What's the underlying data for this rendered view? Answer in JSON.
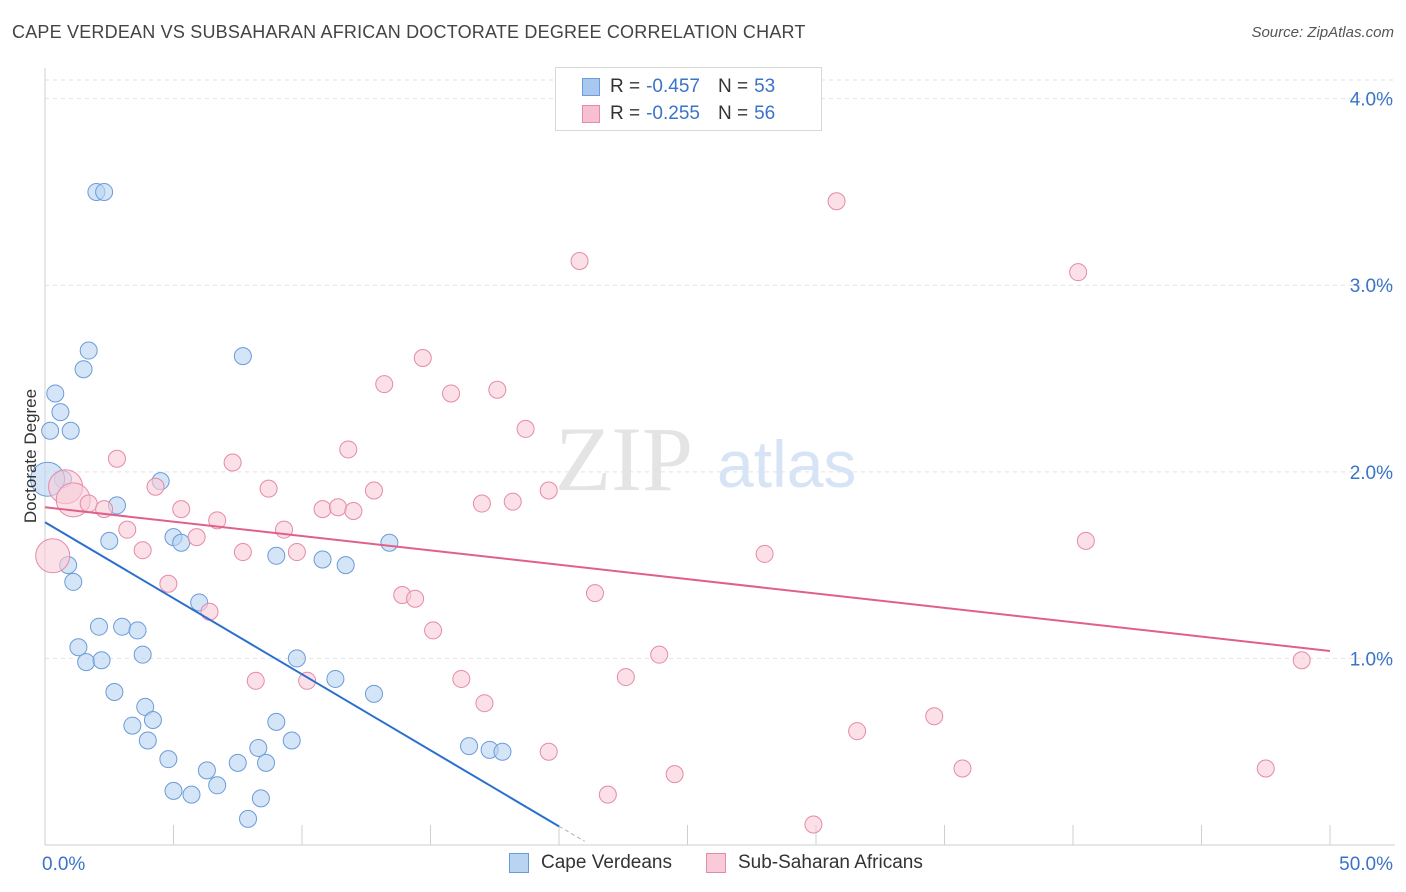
{
  "header": {
    "title": "CAPE VERDEAN VS SUBSAHARAN AFRICAN DOCTORATE DEGREE CORRELATION CHART",
    "source": "Source: ZipAtlas.com"
  },
  "watermark": {
    "zip": "ZIP",
    "atlas": "atlas"
  },
  "legend": {
    "rows": [
      {
        "r_label": "R =",
        "r_value": "-0.457",
        "n_label": "N =",
        "n_value": "53",
        "color": "#a8c8f0",
        "border": "#6b9bd8"
      },
      {
        "r_label": "R =",
        "r_value": "-0.255",
        "n_label": "N =",
        "n_value": "56",
        "color": "#f7c0d0",
        "border": "#e58aa8"
      }
    ]
  },
  "bottom_legend": {
    "items": [
      {
        "label": "Cape Verdeans",
        "color": "#b9d3f3",
        "border": "#6b9bd8"
      },
      {
        "label": "Sub-Saharan Africans",
        "color": "#f9cbd9",
        "border": "#e58aa8"
      }
    ]
  },
  "chart_data": {
    "type": "scatter",
    "title": "CAPE VERDEAN VS SUBSAHARAN AFRICAN DOCTORATE DEGREE CORRELATION CHART",
    "ylabel": "Doctorate Degree",
    "xlabel": "",
    "xlim": [
      0,
      50
    ],
    "ylim": [
      0,
      4.1
    ],
    "x_tick_labels": [
      "0.0%",
      "50.0%"
    ],
    "y_ticks": [
      1.0,
      2.0,
      3.0,
      4.0
    ],
    "y_tick_labels": [
      "1.0%",
      "2.0%",
      "3.0%",
      "4.0%"
    ],
    "grid": true,
    "legend_position": "top-center",
    "series": [
      {
        "name": "Cape Verdeans",
        "color": "#6b9bd8",
        "fill": "#b9d3f3",
        "line_color": "#2b6fce",
        "trend": {
          "x": [
            0,
            20
          ],
          "y": [
            1.73,
            0.1
          ]
        },
        "trend_dashed_ext": {
          "x": [
            20,
            21.0
          ],
          "y": [
            0.1,
            0.02
          ]
        },
        "points": [
          [
            2.0,
            3.5
          ],
          [
            2.3,
            3.5
          ],
          [
            1.7,
            2.65
          ],
          [
            1.5,
            2.55
          ],
          [
            7.7,
            2.62
          ],
          [
            0.4,
            2.42
          ],
          [
            0.6,
            2.32
          ],
          [
            0.2,
            2.22
          ],
          [
            1.0,
            2.22
          ],
          [
            0.7,
            1.96
          ],
          [
            4.5,
            1.95
          ],
          [
            2.8,
            1.82
          ],
          [
            2.5,
            1.63
          ],
          [
            5.0,
            1.65
          ],
          [
            5.3,
            1.62
          ],
          [
            9.0,
            1.55
          ],
          [
            10.8,
            1.53
          ],
          [
            11.7,
            1.5
          ],
          [
            13.4,
            1.62
          ],
          [
            0.9,
            1.5
          ],
          [
            1.1,
            1.41
          ],
          [
            6.0,
            1.3
          ],
          [
            2.1,
            1.17
          ],
          [
            3.0,
            1.17
          ],
          [
            3.6,
            1.15
          ],
          [
            1.3,
            1.06
          ],
          [
            1.6,
            0.98
          ],
          [
            2.2,
            0.99
          ],
          [
            3.8,
            1.02
          ],
          [
            9.8,
            1.0
          ],
          [
            11.3,
            0.89
          ],
          [
            12.8,
            0.81
          ],
          [
            2.7,
            0.82
          ],
          [
            3.9,
            0.74
          ],
          [
            4.2,
            0.67
          ],
          [
            3.4,
            0.64
          ],
          [
            4.0,
            0.56
          ],
          [
            9.0,
            0.66
          ],
          [
            9.6,
            0.56
          ],
          [
            8.3,
            0.52
          ],
          [
            4.8,
            0.46
          ],
          [
            6.3,
            0.4
          ],
          [
            7.5,
            0.44
          ],
          [
            8.6,
            0.44
          ],
          [
            16.5,
            0.53
          ],
          [
            17.3,
            0.51
          ],
          [
            17.8,
            0.5
          ],
          [
            5.0,
            0.29
          ],
          [
            5.7,
            0.27
          ],
          [
            6.7,
            0.32
          ],
          [
            8.4,
            0.25
          ],
          [
            7.9,
            0.14
          ],
          [
            0.1,
            1.96
          ]
        ],
        "sizes_large": [
          [
            0.1,
            1.96
          ]
        ]
      },
      {
        "name": "Sub-Saharan Africans",
        "color": "#e58aa8",
        "fill": "#f9cbd9",
        "line_color": "#e0608c",
        "trend": {
          "x": [
            0,
            50
          ],
          "y": [
            1.81,
            1.04
          ]
        },
        "points": [
          [
            30.8,
            3.45
          ],
          [
            20.8,
            3.13
          ],
          [
            40.2,
            3.07
          ],
          [
            14.7,
            2.61
          ],
          [
            13.2,
            2.47
          ],
          [
            15.8,
            2.42
          ],
          [
            17.6,
            2.44
          ],
          [
            18.7,
            2.23
          ],
          [
            11.8,
            2.12
          ],
          [
            2.8,
            2.07
          ],
          [
            7.3,
            2.05
          ],
          [
            0.8,
            1.92
          ],
          [
            4.3,
            1.92
          ],
          [
            8.7,
            1.91
          ],
          [
            12.8,
            1.9
          ],
          [
            19.6,
            1.9
          ],
          [
            1.1,
            1.85
          ],
          [
            1.7,
            1.83
          ],
          [
            17.0,
            1.83
          ],
          [
            18.2,
            1.84
          ],
          [
            5.3,
            1.8
          ],
          [
            10.8,
            1.8
          ],
          [
            11.4,
            1.81
          ],
          [
            12.0,
            1.79
          ],
          [
            2.3,
            1.8
          ],
          [
            6.7,
            1.74
          ],
          [
            3.2,
            1.69
          ],
          [
            9.3,
            1.69
          ],
          [
            5.9,
            1.65
          ],
          [
            3.8,
            1.58
          ],
          [
            7.7,
            1.57
          ],
          [
            9.8,
            1.57
          ],
          [
            28.0,
            1.56
          ],
          [
            40.5,
            1.63
          ],
          [
            0.3,
            1.55
          ],
          [
            4.8,
            1.4
          ],
          [
            13.9,
            1.34
          ],
          [
            14.4,
            1.32
          ],
          [
            21.4,
            1.35
          ],
          [
            6.4,
            1.25
          ],
          [
            15.1,
            1.15
          ],
          [
            23.9,
            1.02
          ],
          [
            48.9,
            0.99
          ],
          [
            8.2,
            0.88
          ],
          [
            10.2,
            0.88
          ],
          [
            16.2,
            0.89
          ],
          [
            22.6,
            0.9
          ],
          [
            17.1,
            0.76
          ],
          [
            34.6,
            0.69
          ],
          [
            31.6,
            0.61
          ],
          [
            19.6,
            0.5
          ],
          [
            35.7,
            0.41
          ],
          [
            47.5,
            0.41
          ],
          [
            24.5,
            0.38
          ],
          [
            21.9,
            0.27
          ],
          [
            29.9,
            0.11
          ]
        ],
        "sizes_large": [
          [
            0.3,
            1.55
          ],
          [
            0.8,
            1.92
          ],
          [
            1.1,
            1.85
          ]
        ]
      }
    ]
  }
}
